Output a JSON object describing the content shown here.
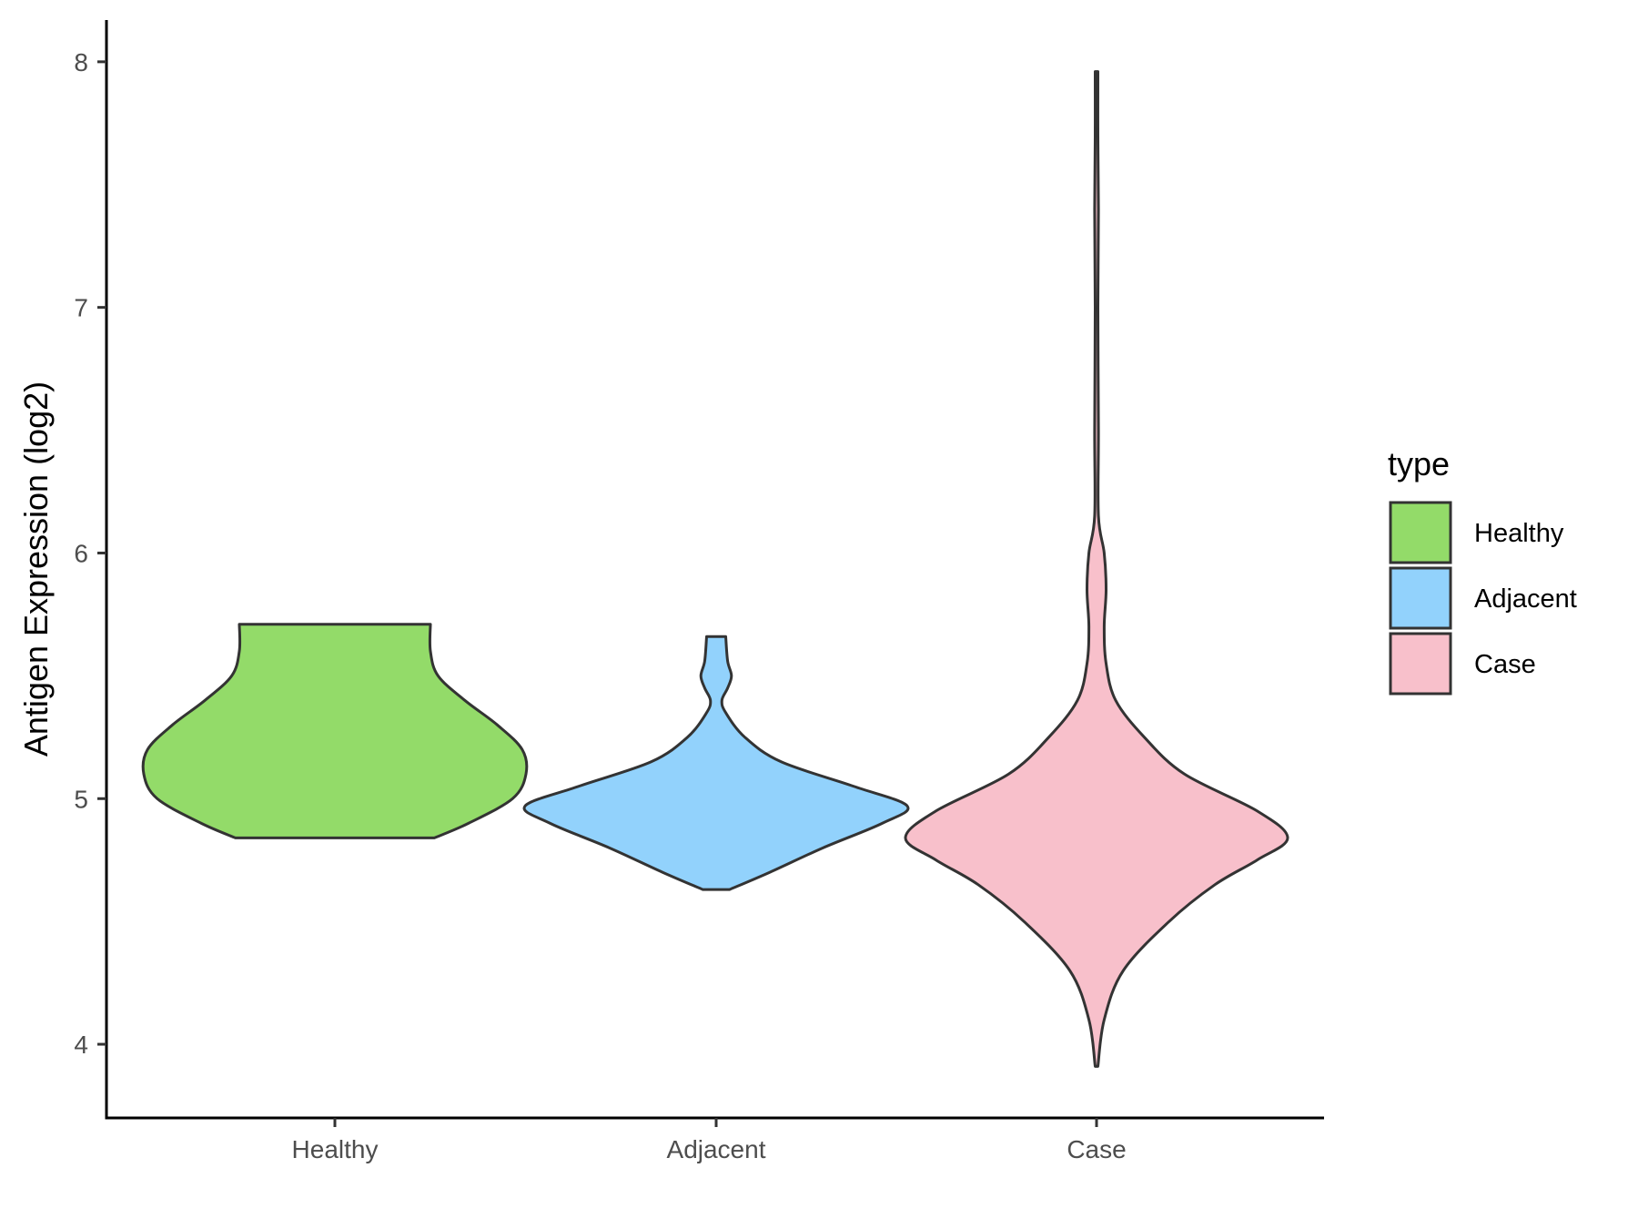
{
  "chart_data": {
    "type": "violin",
    "title": "",
    "xlabel": "",
    "ylabel": "Antigen Expression (log2)",
    "ylim": [
      3.7,
      8.17
    ],
    "yticks": [
      4,
      5,
      6,
      7,
      8
    ],
    "grid": false,
    "categories": [
      "Healthy",
      "Adjacent",
      "Case"
    ],
    "legend": {
      "title": "type",
      "position": "right",
      "entries": [
        "Healthy",
        "Adjacent",
        "Case"
      ]
    },
    "colors": {
      "Healthy": "#93DB69",
      "Adjacent": "#92D2FC",
      "Case": "#F8C0CB",
      "outline": "#333333"
    },
    "series": [
      {
        "category": "Healthy",
        "min": 4.84,
        "max": 5.71,
        "density": [
          [
            4.84,
            0.52
          ],
          [
            4.9,
            0.7
          ],
          [
            5.0,
            0.93
          ],
          [
            5.1,
            1.0
          ],
          [
            5.2,
            0.98
          ],
          [
            5.3,
            0.85
          ],
          [
            5.4,
            0.68
          ],
          [
            5.5,
            0.54
          ],
          [
            5.6,
            0.5
          ],
          [
            5.71,
            0.5
          ]
        ]
      },
      {
        "category": "Adjacent",
        "min": 4.63,
        "max": 5.66,
        "density": [
          [
            4.63,
            0.07
          ],
          [
            4.7,
            0.28
          ],
          [
            4.8,
            0.56
          ],
          [
            4.9,
            0.87
          ],
          [
            4.97,
            1.0
          ],
          [
            5.05,
            0.72
          ],
          [
            5.15,
            0.34
          ],
          [
            5.25,
            0.15
          ],
          [
            5.35,
            0.05
          ],
          [
            5.4,
            0.03
          ],
          [
            5.45,
            0.06
          ],
          [
            5.5,
            0.08
          ],
          [
            5.56,
            0.06
          ],
          [
            5.66,
            0.05
          ]
        ]
      },
      {
        "category": "Case",
        "min": 3.91,
        "max": 7.96,
        "density": [
          [
            3.91,
            0.0
          ],
          [
            4.1,
            0.04
          ],
          [
            4.3,
            0.14
          ],
          [
            4.5,
            0.38
          ],
          [
            4.65,
            0.62
          ],
          [
            4.75,
            0.84
          ],
          [
            4.84,
            1.0
          ],
          [
            4.95,
            0.84
          ],
          [
            5.1,
            0.46
          ],
          [
            5.25,
            0.25
          ],
          [
            5.4,
            0.1
          ],
          [
            5.55,
            0.05
          ],
          [
            5.7,
            0.04
          ],
          [
            5.85,
            0.05
          ],
          [
            6.0,
            0.04
          ],
          [
            6.15,
            0.01
          ],
          [
            6.5,
            0.01
          ],
          [
            7.0,
            0.0
          ],
          [
            7.4,
            0.01
          ],
          [
            7.7,
            0.0
          ],
          [
            7.96,
            0.0
          ]
        ]
      }
    ]
  }
}
